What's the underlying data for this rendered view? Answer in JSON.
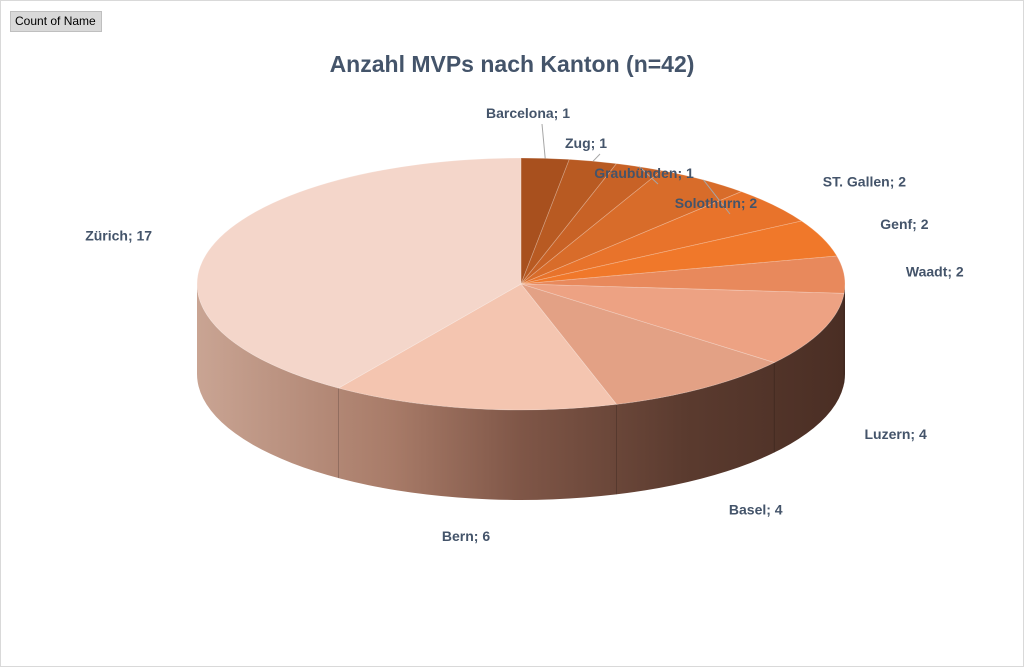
{
  "field_button": "Count of Name",
  "chart_data": {
    "type": "pie",
    "style": "3d",
    "title": "Anzahl MVPs nach Kanton (n=42)",
    "legend": "none",
    "slices": [
      {
        "name": "Barcelona",
        "value": 1,
        "label": "Barcelona; 1",
        "color": "#a8501e"
      },
      {
        "name": "Zug",
        "value": 1,
        "label": "Zug; 1",
        "color": "#b85a22"
      },
      {
        "name": "Graubünden",
        "value": 1,
        "label": "Graubünden; 1",
        "color": "#c86226"
      },
      {
        "name": "Solothurn",
        "value": 2,
        "label": "Solothurn; 2",
        "color": "#d86c2a"
      },
      {
        "name": "ST. Gallen",
        "value": 2,
        "label": "ST. Gallen; 2",
        "color": "#e8732b"
      },
      {
        "name": "Genf",
        "value": 2,
        "label": "Genf; 2",
        "color": "#f0782a"
      },
      {
        "name": "Waadt",
        "value": 2,
        "label": "Waadt; 2",
        "color": "#e8895c"
      },
      {
        "name": "Luzern",
        "value": 4,
        "label": "Luzern; 4",
        "color": "#eda283"
      },
      {
        "name": "Basel",
        "value": 4,
        "label": "Basel; 4",
        "color": "#e3a185"
      },
      {
        "name": "Bern",
        "value": 6,
        "label": "Bern; 6",
        "color": "#f4c5b0"
      },
      {
        "name": "Zürich",
        "value": 17,
        "label": "Zürich; 17",
        "color": "#f4d6ca"
      }
    ]
  }
}
